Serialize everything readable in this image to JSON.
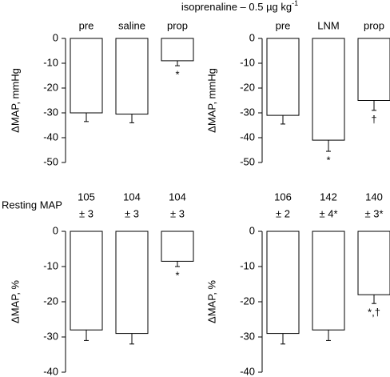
{
  "title": "isoprenaline – 0.5 µg kg",
  "title_superscript": "-1",
  "chart_data": [
    {
      "type": "bar",
      "ylabel": "ΔMAP, mmHg",
      "categories": [
        "pre",
        "saline",
        "prop"
      ],
      "values": [
        -30,
        -30.5,
        -9
      ],
      "errors": [
        3.5,
        3.5,
        2
      ],
      "annotations": [
        null,
        null,
        "*"
      ],
      "color": "#ffffff",
      "ylim": [
        -50,
        0
      ],
      "yticks": [
        0,
        -10,
        -20,
        -30,
        -40,
        -50
      ]
    },
    {
      "type": "bar",
      "ylabel": "ΔMAP, mmHg",
      "categories": [
        "pre",
        "LNM",
        "prop"
      ],
      "values": [
        -31,
        -41,
        -25
      ],
      "errors": [
        3.5,
        4.5,
        4
      ],
      "annotations": [
        null,
        "*",
        "†"
      ],
      "color": "#ffffff",
      "ylim": [
        -50,
        0
      ],
      "yticks": [
        0,
        -10,
        -20,
        -30,
        -40,
        -50
      ]
    },
    {
      "type": "bar",
      "ylabel": "ΔMAP, %",
      "row_label": "Resting MAP",
      "resting_map": [
        "105",
        "104",
        "104"
      ],
      "resting_map_sd": [
        "± 3",
        "± 3",
        "± 3"
      ],
      "values": [
        -28,
        -29,
        -8.5
      ],
      "errors": [
        3,
        3,
        1.5
      ],
      "annotations": [
        null,
        null,
        "*"
      ],
      "color": "#ffffff",
      "ylim": [
        -40,
        0
      ],
      "yticks": [
        0,
        -10,
        -20,
        -30,
        -40
      ]
    },
    {
      "type": "bar",
      "ylabel": "ΔMAP, %",
      "resting_map": [
        "106",
        "142",
        "140"
      ],
      "resting_map_sd": [
        "± 2",
        "± 4*",
        "± 3*"
      ],
      "values": [
        -29,
        -28,
        -18
      ],
      "errors": [
        3,
        3,
        2.5
      ],
      "annotations": [
        null,
        null,
        "*,†"
      ],
      "color": "#ffffff",
      "ylim": [
        -40,
        0
      ],
      "yticks": [
        0,
        -10,
        -20,
        -30,
        -40
      ]
    }
  ]
}
